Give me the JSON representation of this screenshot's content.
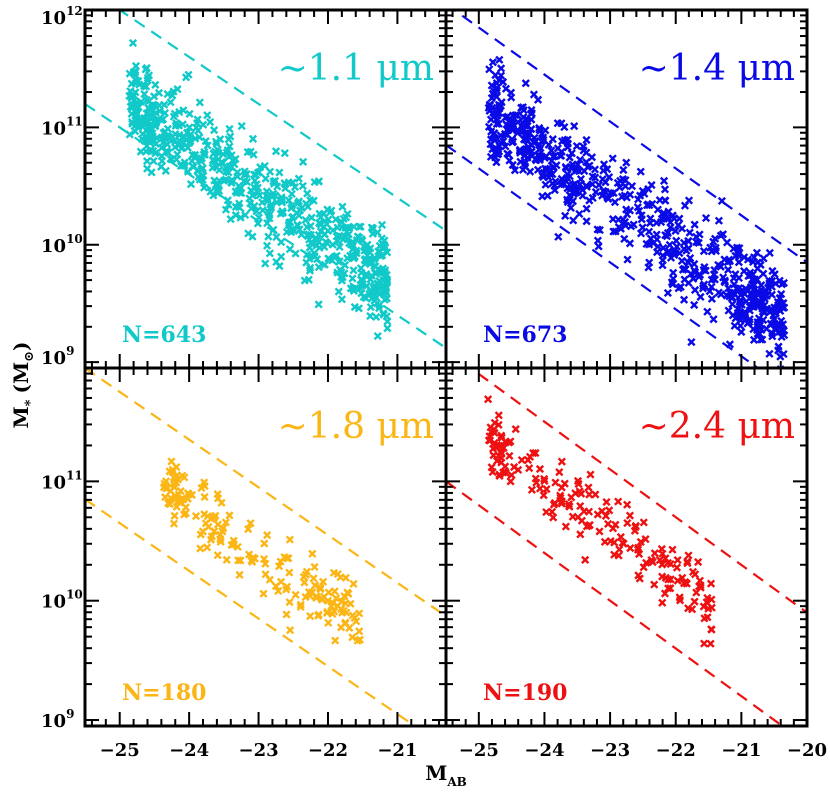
{
  "figure": {
    "ylabel_main": "M",
    "ylabel_sub": "*",
    "ylabel_unit": "(M",
    "ylabel_unit_sym": "⊙",
    "ylabel_close": ")",
    "xlabel_main": "M",
    "xlabel_sub": "AB"
  },
  "chart_data": [
    {
      "type": "scatter",
      "panel": "top-left",
      "label": "~1.1 μm",
      "count_label": "N=643",
      "color": "#11c9c9",
      "n": 643,
      "x_range": [
        -25.5,
        -20.3
      ],
      "y_range_log10": [
        8.95,
        12.0
      ],
      "xticks": [
        -25,
        -24,
        -23,
        -22,
        -21
      ],
      "xtick_labels": [
        "−25",
        "−24",
        "−23",
        "−22",
        "−21"
      ],
      "yticks_log10": [
        9,
        10,
        11,
        12
      ],
      "ytick_labels": [
        "10",
        "10",
        "10",
        "10"
      ],
      "ytick_exps": [
        "9",
        "10",
        "11",
        "12"
      ],
      "trend": {
        "slope": -0.4,
        "x0": -23,
        "y0": 10.45,
        "spread": 0.25
      },
      "upper_line": {
        "slope": -0.4,
        "x0": -23,
        "y0": 11.2
      },
      "lower_line": {
        "slope": -0.4,
        "x0": -23,
        "y0": 10.2
      }
    },
    {
      "type": "scatter",
      "panel": "top-right",
      "label": "~1.4 μm",
      "count_label": "N=673",
      "color": "#0a0ae6",
      "n": 673,
      "x_range": [
        -25.5,
        -20.0
      ],
      "y_range_log10": [
        8.95,
        12.0
      ],
      "xticks": [
        -25,
        -24,
        -23,
        -22,
        -21,
        -20
      ],
      "xtick_labels": [
        "−25",
        "−24",
        "−23",
        "−22",
        "−21",
        "−20"
      ],
      "yticks_log10": [
        9,
        10,
        11,
        12
      ],
      "trend": {
        "slope": -0.4,
        "x0": -23,
        "y0": 10.4,
        "spread": 0.25
      },
      "upper_line": {
        "slope": -0.4,
        "x0": -23,
        "y0": 11.05
      },
      "lower_line": {
        "slope": -0.4,
        "x0": -23,
        "y0": 9.85
      }
    },
    {
      "type": "scatter",
      "panel": "bottom-left",
      "label": "~1.8 μm",
      "count_label": "N=180",
      "color": "#fbb615",
      "n": 180,
      "x_range": [
        -25.5,
        -20.3
      ],
      "y_range_log10": [
        8.95,
        11.95
      ],
      "xticks": [
        -25,
        -24,
        -23,
        -22,
        -21
      ],
      "xtick_labels": [
        "−25",
        "−24",
        "−23",
        "−22",
        "−21"
      ],
      "yticks_log10": [
        9,
        10,
        11
      ],
      "ytick_labels": [
        "10",
        "10",
        "10"
      ],
      "ytick_exps": [
        "9",
        "10",
        "11"
      ],
      "trend": {
        "slope": -0.4,
        "x0": -23,
        "y0": 10.4,
        "spread": 0.18
      },
      "upper_line": {
        "slope": -0.4,
        "x0": -23,
        "y0": 10.95
      },
      "lower_line": {
        "slope": -0.4,
        "x0": -23,
        "y0": 9.85
      }
    },
    {
      "type": "scatter",
      "panel": "bottom-right",
      "label": "~2.4 μm",
      "count_label": "N=190",
      "color": "#ee1111",
      "n": 190,
      "x_range": [
        -25.5,
        -20.0
      ],
      "y_range_log10": [
        8.95,
        11.95
      ],
      "xticks": [
        -25,
        -24,
        -23,
        -22,
        -21,
        -20
      ],
      "xtick_labels": [
        "−25",
        "−24",
        "−23",
        "−22",
        "−21",
        "−20"
      ],
      "yticks_log10": [
        9,
        10,
        11
      ],
      "trend": {
        "slope": -0.4,
        "x0": -23,
        "y0": 10.6,
        "spread": 0.2
      },
      "upper_line": {
        "slope": -0.4,
        "x0": -23,
        "y0": 11.1
      },
      "lower_line": {
        "slope": -0.4,
        "x0": -23,
        "y0": 10.0
      }
    }
  ]
}
